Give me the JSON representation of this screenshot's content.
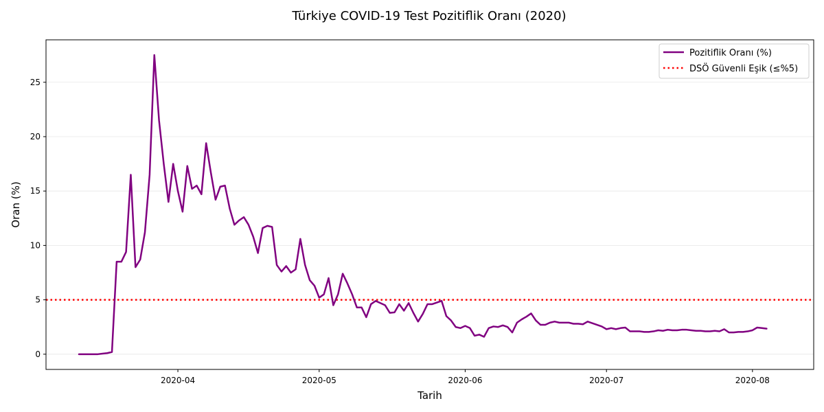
{
  "chart_data": {
    "type": "line",
    "title": "Türkiye COVID-19 Test Pozitiflik Oranı (2020)",
    "xlabel": "Tarih",
    "ylabel": "Oran (%)",
    "x_start": "2020-03-11",
    "x_end": "2020-08-07",
    "xlim": [
      "2020-03-04",
      "2020-08-14"
    ],
    "ylim": [
      -1.4,
      28.9
    ],
    "yticks": [
      0,
      5,
      10,
      15,
      20,
      25
    ],
    "xticks": [
      {
        "date": "2020-04-01",
        "label": "2020-04"
      },
      {
        "date": "2020-05-01",
        "label": "2020-05"
      },
      {
        "date": "2020-06-01",
        "label": "2020-06"
      },
      {
        "date": "2020-07-01",
        "label": "2020-07"
      },
      {
        "date": "2020-08-01",
        "label": "2020-08"
      }
    ],
    "grid": "y",
    "legend_position": "top-right",
    "series": [
      {
        "name": "Pozitiflik Oranı (%)",
        "color": "#800080",
        "style": "solid",
        "values": [
          0.0,
          0.0,
          0.0,
          0.0,
          0.0,
          0.05,
          0.1,
          0.2,
          8.5,
          8.5,
          9.4,
          16.5,
          8.0,
          8.7,
          11.2,
          16.5,
          27.5,
          21.5,
          17.5,
          14.0,
          17.5,
          15.0,
          13.1,
          17.3,
          15.2,
          15.5,
          14.7,
          19.4,
          16.7,
          14.2,
          15.4,
          15.5,
          13.4,
          11.9,
          12.3,
          12.6,
          11.9,
          10.8,
          9.3,
          11.6,
          11.8,
          11.7,
          8.2,
          7.6,
          8.1,
          7.5,
          7.8,
          10.6,
          8.2,
          6.8,
          6.3,
          5.2,
          5.5,
          7.0,
          4.5,
          5.5,
          7.4,
          6.5,
          5.5,
          4.3,
          4.3,
          3.4,
          4.6,
          4.9,
          4.7,
          4.5,
          3.8,
          3.85,
          4.6,
          4.0,
          4.7,
          3.8,
          3.0,
          3.7,
          4.6,
          4.6,
          4.75,
          4.9,
          3.5,
          3.1,
          2.5,
          2.4,
          2.6,
          2.4,
          1.7,
          1.8,
          1.6,
          2.4,
          2.55,
          2.5,
          2.65,
          2.5,
          2.0,
          2.9,
          3.2,
          3.45,
          3.75,
          3.1,
          2.7,
          2.7,
          2.9,
          3.0,
          2.9,
          2.9,
          2.9,
          2.8,
          2.8,
          2.75,
          3.0,
          2.85,
          2.7,
          2.55,
          2.3,
          2.4,
          2.3,
          2.4,
          2.45,
          2.1,
          2.1,
          2.1,
          2.05,
          2.05,
          2.1,
          2.2,
          2.15,
          2.25,
          2.2,
          2.2,
          2.25,
          2.25,
          2.2,
          2.15,
          2.15,
          2.1,
          2.1,
          2.15,
          2.1,
          2.3,
          2.0,
          2.0,
          2.05,
          2.05,
          2.1,
          2.2,
          2.45,
          2.4,
          2.35
        ]
      },
      {
        "name": "DSÖ Güvenli Eşik (≤%5)",
        "color": "#ff0000",
        "style": "dotted",
        "constant": 5
      }
    ]
  }
}
